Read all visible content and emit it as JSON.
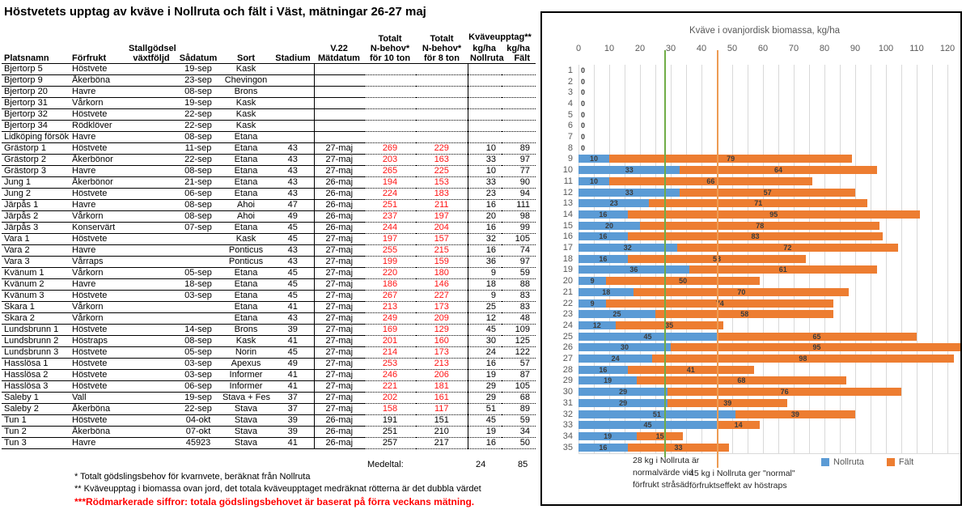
{
  "title": "Höstvetets upptag av kväve i Nollruta och fält i Väst, mätningar 26-27 maj",
  "table": {
    "headers": [
      "Platsnamn",
      "Förfrukt",
      "Stallgödsel\nväxtföljd",
      "Sådatum",
      "Sort",
      "Stadium",
      "V.22\nMätdatum",
      "Totalt\nN-behov*\nför 10 ton",
      "Totalt\nN-behov*\nför 8 ton",
      "kg/ha\nNollruta",
      "kg/ha\nFält"
    ],
    "kvaveupptag_header": "Kväveupptag**",
    "rows": [
      {
        "c": [
          "Bjertorp 5",
          "Höstvete",
          "",
          "19-sep",
          "Kask",
          "",
          "",
          "",
          "",
          "",
          ""
        ],
        "red": false
      },
      {
        "c": [
          "Bjertorp 9",
          "Åkerböna",
          "",
          "23-sep",
          "Chevingon",
          "",
          "",
          "",
          "",
          "",
          ""
        ],
        "red": false
      },
      {
        "c": [
          "Bjertorp 20",
          "Havre",
          "",
          "08-sep",
          "Brons",
          "",
          "",
          "",
          "",
          "",
          ""
        ],
        "red": false
      },
      {
        "c": [
          "Bjertorp 31",
          "Vårkorn",
          "",
          "19-sep",
          "Kask",
          "",
          "",
          "",
          "",
          "",
          ""
        ],
        "red": false
      },
      {
        "c": [
          "Bjertorp 32",
          "Höstvete",
          "",
          "22-sep",
          "Kask",
          "",
          "",
          "",
          "",
          "",
          ""
        ],
        "red": false
      },
      {
        "c": [
          "Bjertorp 34",
          "Rödklöver",
          "",
          "22-sep",
          "Kask",
          "",
          "",
          "",
          "",
          "",
          ""
        ],
        "red": false
      },
      {
        "c": [
          "Lidköping försök",
          "Havre",
          "",
          "08-sep",
          "Etana",
          "",
          "",
          "",
          "",
          "",
          ""
        ],
        "red": false
      },
      {
        "c": [
          "Grästorp 1",
          "Höstvete",
          "",
          "11-sep",
          "Etana",
          "43",
          "27-maj",
          "269",
          "229",
          "10",
          "89"
        ],
        "red": true
      },
      {
        "c": [
          "Grästorp 2",
          "Åkerbönor",
          "",
          "22-sep",
          "Etana",
          "43",
          "27-maj",
          "203",
          "163",
          "33",
          "97"
        ],
        "red": true
      },
      {
        "c": [
          "Grästorp 3",
          "Havre",
          "",
          "08-sep",
          "Etana",
          "43",
          "27-maj",
          "265",
          "225",
          "10",
          "77"
        ],
        "red": true
      },
      {
        "c": [
          "Jung 1",
          "Åkerbönor",
          "",
          "21-sep",
          "Etana",
          "43",
          "26-maj",
          "194",
          "153",
          "33",
          "90"
        ],
        "red": true
      },
      {
        "c": [
          "Jung 2",
          "Höstvete",
          "",
          "06-sep",
          "Etana",
          "43",
          "26-maj",
          "224",
          "183",
          "23",
          "94"
        ],
        "red": true
      },
      {
        "c": [
          "Järpås 1",
          "Havre",
          "",
          "08-sep",
          "Ahoi",
          "47",
          "26-maj",
          "251",
          "211",
          "16",
          "111"
        ],
        "red": true
      },
      {
        "c": [
          "Järpås 2",
          "Vårkorn",
          "",
          "08-sep",
          "Ahoi",
          "49",
          "26-maj",
          "237",
          "197",
          "20",
          "98"
        ],
        "red": true
      },
      {
        "c": [
          "Järpås 3",
          "Konservärt",
          "",
          "07-sep",
          "Etana",
          "45",
          "26-maj",
          "244",
          "204",
          "16",
          "99"
        ],
        "red": true
      },
      {
        "c": [
          "Vara 1",
          "Höstvete",
          "",
          "",
          "Kask",
          "45",
          "27-maj",
          "197",
          "157",
          "32",
          "105"
        ],
        "red": true
      },
      {
        "c": [
          "Vara 2",
          "Havre",
          "",
          "",
          "Ponticus",
          "43",
          "27-maj",
          "255",
          "215",
          "16",
          "74"
        ],
        "red": true
      },
      {
        "c": [
          "Vara 3",
          "Vårraps",
          "",
          "",
          "Ponticus",
          "43",
          "27-maj",
          "199",
          "159",
          "36",
          "97"
        ],
        "red": true
      },
      {
        "c": [
          "Kvänum 1",
          "Vårkorn",
          "",
          "05-sep",
          "Etana",
          "45",
          "27-maj",
          "220",
          "180",
          "9",
          "59"
        ],
        "red": true
      },
      {
        "c": [
          "Kvänum 2",
          "Havre",
          "",
          "18-sep",
          "Etana",
          "45",
          "27-maj",
          "186",
          "146",
          "18",
          "88"
        ],
        "red": true
      },
      {
        "c": [
          "Kvänum 3",
          "Höstvete",
          "",
          "03-sep",
          "Etana",
          "45",
          "27-maj",
          "267",
          "227",
          "9",
          "83"
        ],
        "red": true
      },
      {
        "c": [
          "Skara 1",
          "Vårkorn",
          "",
          "",
          "Etana",
          "41",
          "27-maj",
          "213",
          "173",
          "25",
          "83"
        ],
        "red": true
      },
      {
        "c": [
          "Skara 2",
          "Vårkorn",
          "",
          "",
          "Etana",
          "43",
          "27-maj",
          "249",
          "209",
          "12",
          "48"
        ],
        "red": true
      },
      {
        "c": [
          "Lundsbrunn 1",
          "Höstvete",
          "",
          "14-sep",
          "Brons",
          "39",
          "27-maj",
          "169",
          "129",
          "45",
          "109"
        ],
        "red": true
      },
      {
        "c": [
          "Lundsbrunn 2",
          "Höstraps",
          "",
          "08-sep",
          "Kask",
          "41",
          "27-maj",
          "201",
          "160",
          "30",
          "125"
        ],
        "red": true
      },
      {
        "c": [
          "Lundsbrunn 3",
          "Höstvete",
          "",
          "05-sep",
          "Norin",
          "45",
          "27-maj",
          "214",
          "173",
          "24",
          "122"
        ],
        "red": true
      },
      {
        "c": [
          "Hasslösa 1",
          "Höstvete",
          "",
          "03-sep",
          "Apexus",
          "49",
          "27-maj",
          "253",
          "213",
          "16",
          "57"
        ],
        "red": true
      },
      {
        "c": [
          "Hasslösa 2",
          "Höstvete",
          "",
          "03-sep",
          "Informer",
          "41",
          "27-maj",
          "246",
          "206",
          "19",
          "87"
        ],
        "red": true
      },
      {
        "c": [
          "Hasslösa 3",
          "Höstvete",
          "",
          "06-sep",
          "Informer",
          "41",
          "27-maj",
          "221",
          "181",
          "29",
          "105"
        ],
        "red": true
      },
      {
        "c": [
          "Saleby 1",
          "Vall",
          "",
          "19-sep",
          "Stava + Fes",
          "37",
          "27-maj",
          "202",
          "161",
          "29",
          "68"
        ],
        "red": true
      },
      {
        "c": [
          "Saleby 2",
          "Åkerböna",
          "",
          "22-sep",
          "Stava",
          "37",
          "27-maj",
          "158",
          "117",
          "51",
          "89"
        ],
        "red": true
      },
      {
        "c": [
          "Tun 1",
          "Höstvete",
          "",
          "04-okt",
          "Stava",
          "39",
          "26-maj",
          "191",
          "151",
          "45",
          "59"
        ],
        "red": false
      },
      {
        "c": [
          "Tun 2",
          "Åkerböna",
          "",
          "07-okt",
          "Stava",
          "39",
          "26-maj",
          "251",
          "210",
          "19",
          "34"
        ],
        "red": false
      },
      {
        "c": [
          "Tun 3",
          "Havre",
          "",
          "45923",
          "Stava",
          "41",
          "26-maj",
          "257",
          "217",
          "16",
          "50"
        ],
        "red": false
      }
    ],
    "medeltal_label": "Medeltal:",
    "medeltal_nollruta": "24",
    "medeltal_falt": "85"
  },
  "footnotes": {
    "fn1": "* Totalt gödslingsbehov för kvarnvete, beräknat från Nollruta",
    "fn2": "** Kväveupptag i biomassa ovan jord, det totala kväveupptaget medräknat rötterna är det dubbla värdet",
    "fn3": "***Rödmarkerade siffror: totala gödslingsbehovet är baserat på förra veckans mätning."
  },
  "chart_data": {
    "type": "bar",
    "orientation": "horizontal-stacked",
    "title": "Kväve i ovanjordisk biomassa, kg/ha",
    "categories": [
      1,
      2,
      3,
      4,
      5,
      6,
      7,
      8,
      9,
      10,
      11,
      12,
      13,
      14,
      15,
      16,
      17,
      18,
      19,
      20,
      21,
      22,
      23,
      24,
      25,
      26,
      27,
      28,
      29,
      30,
      31,
      32,
      33,
      34,
      35
    ],
    "series": [
      {
        "name": "Nollruta",
        "color": "#5B9BD5",
        "values": [
          0,
          0,
          0,
          0,
          0,
          0,
          0,
          0,
          10,
          33,
          10,
          33,
          23,
          16,
          20,
          16,
          32,
          16,
          36,
          9,
          18,
          9,
          25,
          12,
          45,
          30,
          24,
          16,
          19,
          29,
          29,
          51,
          45,
          19,
          16
        ]
      },
      {
        "name": "Fält",
        "color": "#ED7D31",
        "values": [
          0,
          0,
          0,
          0,
          0,
          0,
          0,
          0,
          79,
          64,
          66,
          57,
          71,
          95,
          78,
          83,
          72,
          58,
          61,
          50,
          70,
          74,
          58,
          35,
          65,
          95,
          98,
          41,
          68,
          76,
          39,
          39,
          14,
          15,
          33
        ]
      }
    ],
    "xlim": [
      0,
      130
    ],
    "tick_step": 10,
    "grid_step": 5,
    "grid": true,
    "legend_position": "bottom",
    "ref_lines": [
      {
        "value": 28,
        "color": "#70AD47",
        "label": "28 kg i Nollruta är\nnormalvärde vid\nförfrukt stråsäd"
      },
      {
        "value": 45,
        "color": "#ED9B53",
        "label": "45 kg i Nollruta ger \"normal\"\nförfruktseffekt av höstraps"
      }
    ]
  }
}
